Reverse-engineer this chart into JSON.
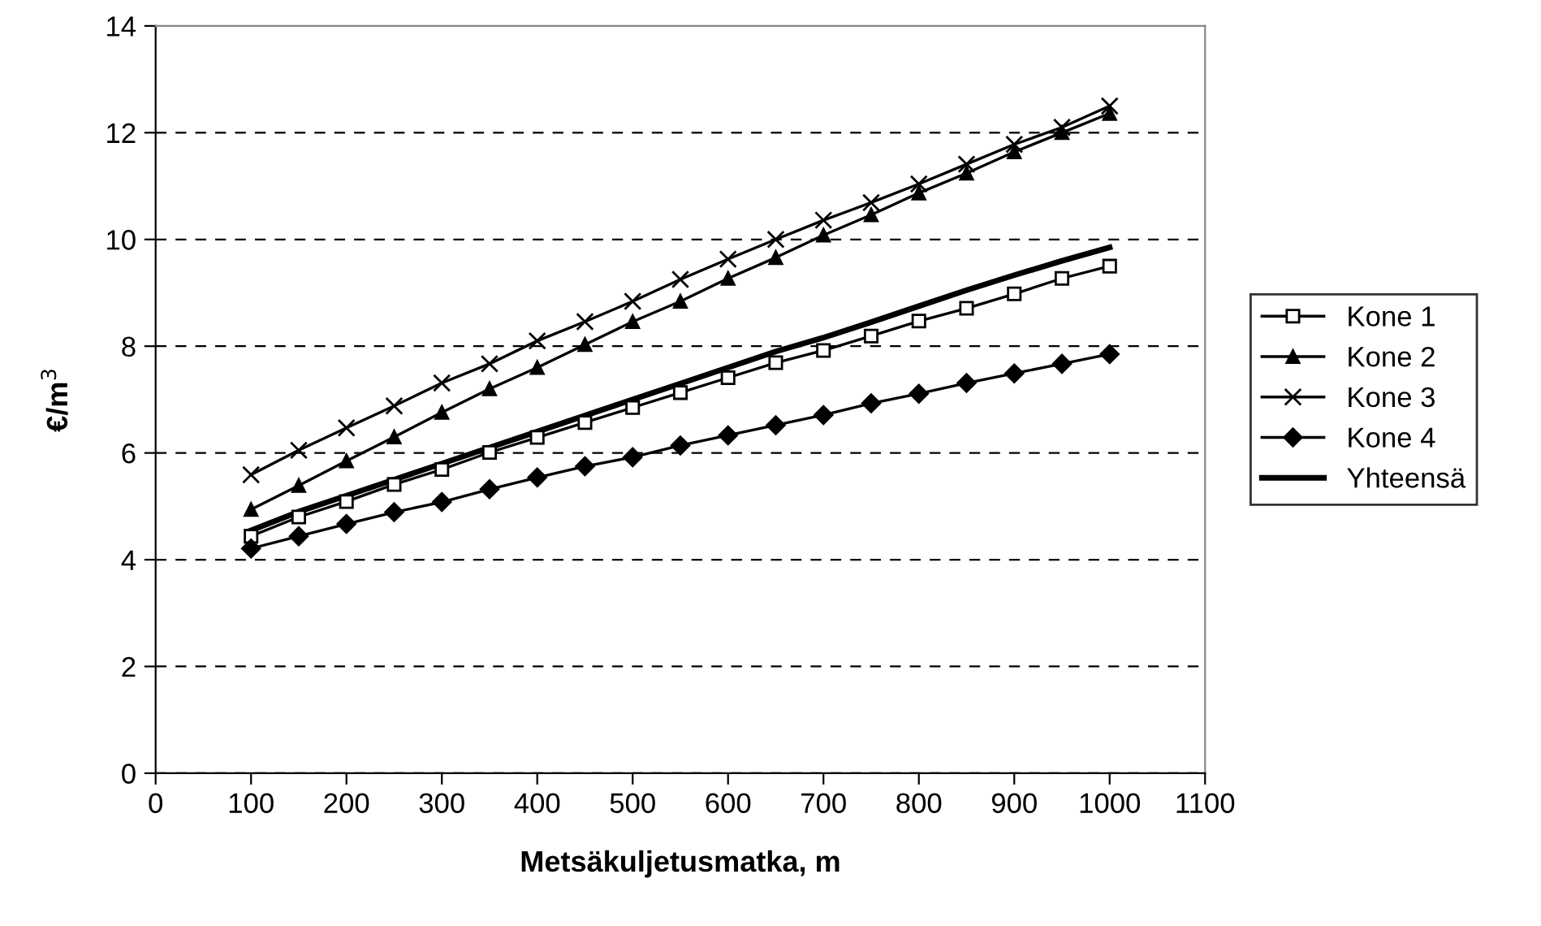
{
  "chart_data": {
    "type": "line",
    "xlabel": "Metsäkuljetusmatka, m",
    "ylabel": "€/m$^{3}$",
    "x": [
      100,
      150,
      200,
      250,
      300,
      350,
      400,
      450,
      500,
      550,
      600,
      650,
      700,
      750,
      800,
      850,
      900,
      950,
      1000
    ],
    "series": [
      {
        "name": "Kone 1",
        "color": "#000000",
        "marker": "square",
        "values": [
          4.44,
          4.8,
          5.09,
          5.41,
          5.69,
          6.01,
          6.29,
          6.57,
          6.85,
          7.13,
          7.41,
          7.69,
          7.92,
          8.19,
          8.47,
          8.71,
          8.98,
          9.27,
          9.5
        ]
      },
      {
        "name": "Kone 2",
        "color": "#000000",
        "marker": "triangle",
        "values": [
          4.94,
          5.39,
          5.85,
          6.3,
          6.76,
          7.2,
          7.6,
          8.03,
          8.46,
          8.84,
          9.27,
          9.66,
          10.08,
          10.46,
          10.87,
          11.24,
          11.64,
          12.0,
          12.36
        ]
      },
      {
        "name": "Kone 3",
        "color": "#000000",
        "marker": "cross",
        "values": [
          5.59,
          6.05,
          6.47,
          6.88,
          7.31,
          7.67,
          8.1,
          8.46,
          8.84,
          9.25,
          9.63,
          10.0,
          10.36,
          10.69,
          11.04,
          11.41,
          11.78,
          12.1,
          12.5
        ]
      },
      {
        "name": "Kone 4",
        "color": "#000000",
        "marker": "diamond",
        "values": [
          4.21,
          4.44,
          4.67,
          4.89,
          5.08,
          5.32,
          5.54,
          5.75,
          5.92,
          6.14,
          6.33,
          6.52,
          6.71,
          6.93,
          7.11,
          7.31,
          7.49,
          7.67,
          7.85
        ]
      },
      {
        "name": "Yhteensä",
        "color": "#000000",
        "marker": "none",
        "values": [
          4.55,
          4.9,
          5.2,
          5.5,
          5.8,
          6.1,
          6.4,
          6.7,
          7.0,
          7.3,
          7.6,
          7.9,
          8.16,
          8.45,
          8.75,
          9.05,
          9.33,
          9.6,
          9.85
        ]
      }
    ],
    "xlim": [
      0,
      1100
    ],
    "xticks": [
      0,
      100,
      200,
      300,
      400,
      500,
      600,
      700,
      800,
      900,
      1000,
      1100
    ],
    "ylim": [
      0,
      14
    ],
    "yticks": [
      0,
      2,
      4,
      6,
      8,
      10,
      12,
      14
    ],
    "grid": "y",
    "legend": "right"
  }
}
